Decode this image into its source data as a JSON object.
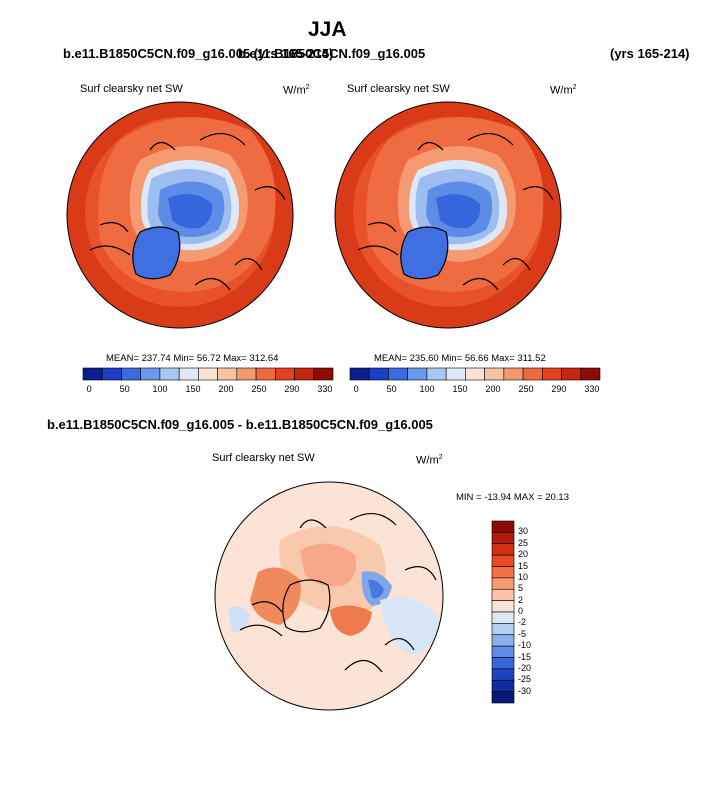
{
  "page": {
    "title": "JJA",
    "case_left": "b.e11.B1850C5CN.f09_g16.005 (yrs 165-214)",
    "case_right": "b.e11.B1850C5CN.f09_g16.005",
    "case_right_years": "(yrs 165-214)",
    "diff_title": "b.e11.B1850C5CN.f09_g16.005 - b.e11.B1850C5CN.f09_g16.005"
  },
  "chart_data": [
    {
      "type": "heatmap",
      "projection": "north-polar-stereographic",
      "title": "Surf clearsky net SW",
      "units_label": "W/m",
      "units_exp": "2",
      "stats": {
        "mean": 237.74,
        "min": 56.72,
        "max": 312.64
      },
      "stats_text": "MEAN= 237.74  Min=  56.72  Max= 312.64",
      "colorbar": {
        "orientation": "horizontal",
        "tick_labels": [
          "0",
          "50",
          "100",
          "150",
          "200",
          "250",
          "290",
          "330"
        ],
        "colors": [
          "#0a1f8f",
          "#1b3fc8",
          "#3a6be0",
          "#6a9aee",
          "#a9c7f2",
          "#dfe9f7",
          "#fbe3d4",
          "#f9c3a3",
          "#f5996f",
          "#f06a3f",
          "#e2411f",
          "#c52710",
          "#8e0b05"
        ]
      }
    },
    {
      "type": "heatmap",
      "projection": "north-polar-stereographic",
      "title": "Surf clearsky net SW",
      "units_label": "W/m",
      "units_exp": "2",
      "stats": {
        "mean": 235.6,
        "min": 56.66,
        "max": 311.52
      },
      "stats_text": "MEAN= 235.60  Min=  56.66  Max= 311.52",
      "colorbar": {
        "orientation": "horizontal",
        "tick_labels": [
          "0",
          "50",
          "100",
          "150",
          "200",
          "250",
          "290",
          "330"
        ],
        "colors": [
          "#0a1f8f",
          "#1b3fc8",
          "#3a6be0",
          "#6a9aee",
          "#a9c7f2",
          "#dfe9f7",
          "#fbe3d4",
          "#f9c3a3",
          "#f5996f",
          "#f06a3f",
          "#e2411f",
          "#c52710",
          "#8e0b05"
        ]
      }
    },
    {
      "type": "heatmap",
      "projection": "north-polar-stereographic",
      "title": "Surf clearsky net SW",
      "units_label": "W/m",
      "units_exp": "2",
      "stats": {
        "min": -13.94,
        "max": 20.13
      },
      "stats_text": "MIN = -13.94 MAX =  20.13",
      "colorbar": {
        "orientation": "vertical",
        "tick_labels": [
          "30",
          "25",
          "20",
          "15",
          "10",
          "5",
          "2",
          "0",
          "-2",
          "-5",
          "-10",
          "-15",
          "-20",
          "-25",
          "-30"
        ],
        "colors": [
          "#8e0b05",
          "#b41a0c",
          "#d3300f",
          "#e84b24",
          "#f27043",
          "#f79a73",
          "#fbc4a8",
          "#fbe4d6",
          "#dce9f7",
          "#b5cff1",
          "#8cb0ec",
          "#5f8de6",
          "#3866d9",
          "#1d43c2",
          "#0e2ea2",
          "#061a78"
        ]
      }
    }
  ]
}
